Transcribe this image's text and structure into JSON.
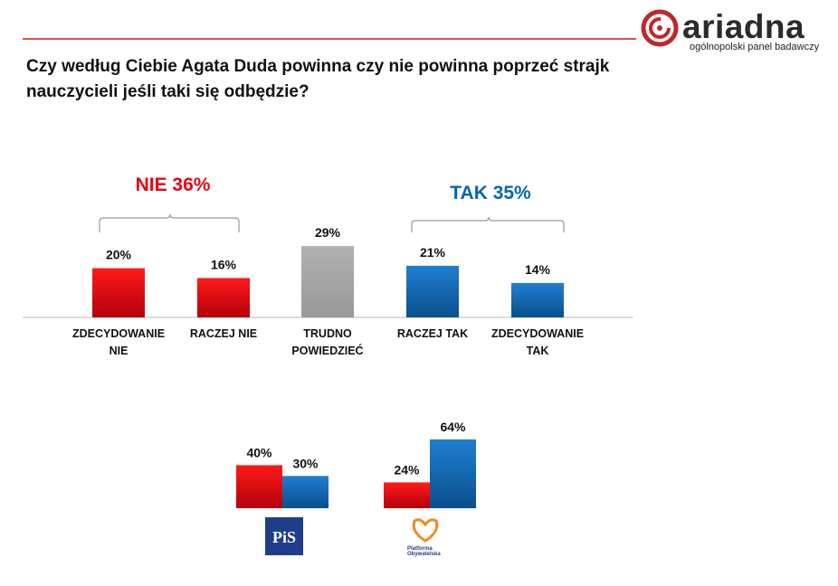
{
  "logo": {
    "word": "ariadna",
    "subtitle": "ogólnopolski panel badawczy",
    "brand_color": "#c0272d"
  },
  "question": "Czy według Ciebie Agata Duda powinna czy nie powinna poprzeć strajk nauczycieli jeśli taki się odbędzie?",
  "groups": {
    "nie": {
      "label": "NIE 36%",
      "color": "#e30613"
    },
    "tak": {
      "label": "TAK 35%",
      "color": "#0066b3"
    }
  },
  "colors": {
    "red": "#e30613",
    "red_dark": "#b3000b",
    "blue": "#1a6fb8",
    "blue_dark": "#0a4f8c",
    "grey": "#a6a6a6"
  },
  "chart_data": [
    {
      "type": "bar",
      "categories": [
        [
          "ZDECYDOWANIE",
          "NIE"
        ],
        [
          "RACZEJ NIE"
        ],
        [
          "TRUDNO",
          "POWIEDZIEĆ"
        ],
        [
          "RACZEJ TAK"
        ],
        [
          "ZDECYDOWANIE",
          "TAK"
        ]
      ],
      "values": [
        20,
        16,
        29,
        21,
        14
      ],
      "value_labels": [
        "20%",
        "16%",
        "29%",
        "21%",
        "14%"
      ],
      "bar_colors": [
        "red",
        "red",
        "grey",
        "blue",
        "blue"
      ],
      "ylim": [
        0,
        40
      ],
      "grid": false
    },
    {
      "type": "bar",
      "categories": [
        "PiS",
        "Platforma Obywatelska"
      ],
      "series": [
        {
          "values": [
            40,
            24
          ],
          "value_labels": [
            "40%",
            "24%"
          ],
          "color": "red"
        },
        {
          "values": [
            30,
            64
          ],
          "value_labels": [
            "30%",
            "64%"
          ],
          "color": "blue"
        }
      ],
      "ylim": [
        0,
        100
      ],
      "grid": false
    }
  ],
  "party_logos": {
    "pis_text": "PiS",
    "po_text_line1": "Platforma",
    "po_text_line2": "Obywatelska"
  }
}
